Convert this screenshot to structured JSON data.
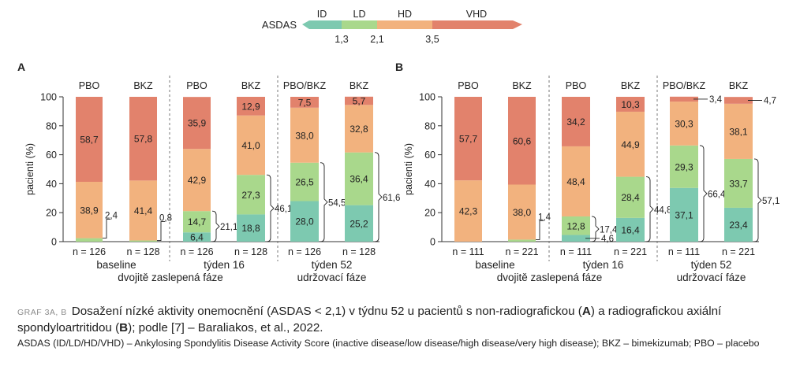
{
  "legend": {
    "label": "ASDAS",
    "segments": [
      {
        "name": "ID",
        "color": "#7dc9b0"
      },
      {
        "name": "LD",
        "color": "#a9d88c"
      },
      {
        "name": "HD",
        "color": "#f2b27e"
      },
      {
        "name": "VHD",
        "color": "#e2826c"
      }
    ],
    "thresholds": [
      "1,3",
      "2,1",
      "3,5"
    ]
  },
  "chart_data": [
    {
      "panel": "A",
      "type": "stacked-bar",
      "ylabel": "pacienti (%)",
      "ylim": [
        0,
        100
      ],
      "yticks": [
        0,
        20,
        40,
        60,
        80,
        100
      ],
      "series_names": [
        "ID",
        "LD",
        "HD",
        "VHD"
      ],
      "groups": [
        {
          "label": "baseline",
          "bars": [
            {
              "label": "PBO",
              "n": "n = 126",
              "values": [
                0,
                2.4,
                38.9,
                58.7
              ],
              "labels": [
                "",
                "",
                "38,9",
                "58,7"
              ],
              "bracket": "2,4"
            },
            {
              "label": "BKZ",
              "n": "n = 128",
              "values": [
                0,
                0.8,
                41.4,
                57.8
              ],
              "labels": [
                "",
                "",
                "41,4",
                "57,8"
              ],
              "bracket": "0,8"
            }
          ]
        },
        {
          "label": "týden 16",
          "bars": [
            {
              "label": "PBO",
              "n": "n = 126",
              "values": [
                6.4,
                14.7,
                42.9,
                35.9
              ],
              "labels": [
                "6,4",
                "14,7",
                "42,9",
                "35,9"
              ],
              "bracket": "21,1"
            },
            {
              "label": "BKZ",
              "n": "n = 128",
              "values": [
                18.8,
                27.3,
                41.0,
                12.9
              ],
              "labels": [
                "18,8",
                "27,3",
                "41,0",
                "12,9"
              ],
              "bracket": "46,1"
            }
          ]
        },
        {
          "label": "týden 52",
          "bars": [
            {
              "label": "PBO/BKZ",
              "n": "n = 126",
              "values": [
                28.0,
                26.5,
                38.0,
                7.5
              ],
              "labels": [
                "28,0",
                "26,5",
                "38,0",
                "7,5"
              ],
              "bracket": "54,5"
            },
            {
              "label": "BKZ",
              "n": "n = 128",
              "values": [
                25.2,
                36.4,
                32.8,
                5.7
              ],
              "labels": [
                "25,2",
                "36,4",
                "32,8",
                "5,7"
              ],
              "bracket": "61,6"
            }
          ]
        }
      ]
    },
    {
      "panel": "B",
      "type": "stacked-bar",
      "ylabel": "pacienti (%)",
      "ylim": [
        0,
        100
      ],
      "yticks": [
        0,
        20,
        40,
        60,
        80,
        100
      ],
      "series_names": [
        "ID",
        "LD",
        "HD",
        "VHD"
      ],
      "groups": [
        {
          "label": "baseline",
          "bars": [
            {
              "label": "PBO",
              "n": "n = 111",
              "values": [
                0,
                0,
                42.3,
                57.7
              ],
              "labels": [
                "",
                "",
                "42,3",
                "57,7"
              ],
              "bracket": ""
            },
            {
              "label": "BKZ",
              "n": "n = 221",
              "values": [
                0,
                1.4,
                38.0,
                60.6
              ],
              "labels": [
                "",
                "",
                "38,0",
                "60,6"
              ],
              "bracket": "1,4"
            }
          ]
        },
        {
          "label": "týden 16",
          "bars": [
            {
              "label": "PBO",
              "n": "n = 111",
              "values": [
                4.6,
                12.8,
                48.4,
                34.2
              ],
              "labels": [
                "4,6",
                "12,8",
                "48,4",
                "34,2"
              ],
              "bracket": "17,4"
            },
            {
              "label": "BKZ",
              "n": "n = 221",
              "values": [
                16.4,
                28.4,
                44.9,
                10.3
              ],
              "labels": [
                "16,4",
                "28,4",
                "44,9",
                "10,3"
              ],
              "bracket": "44,8"
            }
          ]
        },
        {
          "label": "týden 52",
          "bars": [
            {
              "label": "PBO/BKZ",
              "n": "n = 111",
              "values": [
                37.1,
                29.3,
                30.3,
                3.4
              ],
              "labels": [
                "37,1",
                "29,3",
                "30,3",
                "3,4"
              ],
              "bracket": "66,4"
            },
            {
              "label": "BKZ",
              "n": "n = 221",
              "values": [
                23.4,
                33.7,
                38.1,
                4.7
              ],
              "labels": [
                "23,4",
                "33,7",
                "38,1",
                "4,7"
              ],
              "bracket": "57,1"
            }
          ]
        }
      ]
    }
  ],
  "phase_labels": {
    "double_blind": "dvojitě zaslepená fáze",
    "maintenance": "udržovací fáze"
  },
  "caption": {
    "label": "GRAF 3A, B",
    "text_1": "Dosažení nízké aktivity onemocnění (ASDAS < 2,1) v týdnu 52 u pacientů s non-radiografickou (",
    "bold_a": "A",
    "text_2": ") a radiografickou axiální spondyloartritidou (",
    "bold_b": "B",
    "text_3": "); podle [7] – Baraliakos, et al., 2022.",
    "footnote": "ASDAS (ID/LD/HD/VHD) – Ankylosing Spondylitis Disease Activity Score (inactive disease/low disease/high disease/very high disease); BKZ – bimekizumab; PBO – placebo"
  }
}
